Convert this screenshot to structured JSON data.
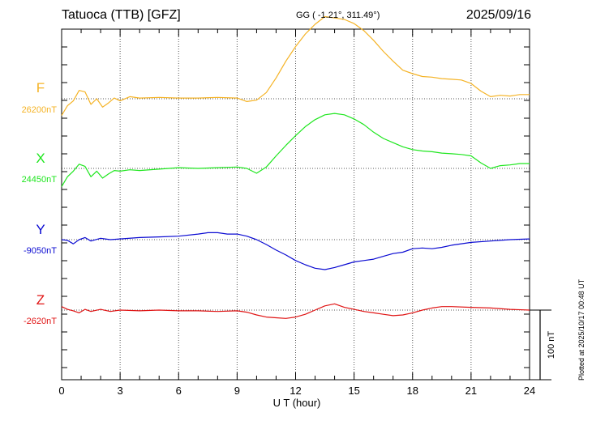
{
  "header": {
    "title": "Tatuoca (TTB)  [GFZ]",
    "coords": "GG ( -1.21°, 311.49°)",
    "date": "2025/09/16"
  },
  "footer": {
    "plotted": "Plotted at 2025/10/17 00:48 UT"
  },
  "colors": {
    "F": "#f5b325",
    "X": "#1ee61e",
    "Y": "#0a0ad2",
    "Z": "#e01414",
    "grid": "#555555",
    "axis": "#000000"
  },
  "chart_data": {
    "type": "line",
    "xlabel": "U T (hour)",
    "xlim": [
      0,
      24
    ],
    "xticks": [
      0,
      3,
      6,
      9,
      12,
      15,
      18,
      21,
      24
    ],
    "scale_bar": {
      "label": "100 nT",
      "nT": 100
    },
    "series": [
      {
        "name": "F",
        "baseline_label": "26200nT",
        "baseline_nT": 26200,
        "x": [
          0,
          0.3,
          0.6,
          0.9,
          1.2,
          1.5,
          1.8,
          2.1,
          2.4,
          2.7,
          3.0,
          3.5,
          4,
          5,
          6,
          7,
          8,
          9,
          9.5,
          10,
          10.5,
          11,
          11.5,
          12,
          12.5,
          13,
          13.5,
          14,
          14.5,
          15,
          15.5,
          16,
          16.5,
          17,
          17.5,
          18,
          18.5,
          19,
          19.5,
          20,
          20.5,
          21,
          21.5,
          22,
          22.5,
          23,
          23.5,
          24
        ],
        "values": [
          26176,
          26190,
          26197,
          26212,
          26210,
          26192,
          26200,
          26188,
          26194,
          26201,
          26197,
          26203,
          26201,
          26202,
          26201,
          26201,
          26202,
          26201,
          26196,
          26198,
          26209,
          26230,
          26254,
          26275,
          26293,
          26307,
          26318,
          26316,
          26314,
          26308,
          26298,
          26284,
          26268,
          26254,
          26241,
          26236,
          26232,
          26231,
          26229,
          26228,
          26227,
          26222,
          26211,
          26203,
          26205,
          26204,
          26206,
          26206
        ]
      },
      {
        "name": "X",
        "baseline_label": "24450nT",
        "baseline_nT": 24450,
        "x": [
          0,
          0.3,
          0.6,
          0.9,
          1.2,
          1.5,
          1.8,
          2.1,
          2.4,
          2.7,
          3.0,
          3.5,
          4,
          5,
          6,
          7,
          8,
          9,
          9.5,
          10,
          10.5,
          11,
          11.5,
          12,
          12.5,
          13,
          13.5,
          14,
          14.5,
          15,
          15.5,
          16,
          16.5,
          17,
          17.5,
          18,
          18.5,
          19,
          19.5,
          20,
          20.5,
          21,
          21.5,
          22,
          22.5,
          23,
          23.5,
          24
        ],
        "values": [
          24424,
          24438,
          24446,
          24456,
          24453,
          24438,
          24446,
          24436,
          24442,
          24447,
          24446,
          24448,
          24447,
          24449,
          24451,
          24450,
          24451,
          24452,
          24450,
          24443,
          24452,
          24468,
          24483,
          24497,
          24510,
          24520,
          24527,
          24529,
          24527,
          24521,
          24513,
          24502,
          24493,
          24487,
          24481,
          24477,
          24475,
          24474,
          24472,
          24471,
          24470,
          24468,
          24458,
          24450,
          24454,
          24455,
          24457,
          24457
        ]
      },
      {
        "name": "Y",
        "baseline_label": "-9050nT",
        "baseline_nT": -9050,
        "x": [
          0,
          0.3,
          0.6,
          0.9,
          1.2,
          1.5,
          2,
          2.5,
          3,
          4,
          5,
          6,
          7,
          7.5,
          8,
          8.5,
          9,
          9.5,
          10,
          10.5,
          11,
          11.5,
          12,
          12.5,
          13,
          13.5,
          14,
          14.5,
          15,
          15.5,
          16,
          16.5,
          17,
          17.5,
          18,
          18.5,
          19,
          19.5,
          20,
          21,
          22,
          23,
          24
        ],
        "values": [
          -9050,
          -9051,
          -9056,
          -9050,
          -9047,
          -9052,
          -9048,
          -9050,
          -9049,
          -9047,
          -9046,
          -9045,
          -9042,
          -9040,
          -9040,
          -9042,
          -9042,
          -9045,
          -9050,
          -9057,
          -9065,
          -9072,
          -9080,
          -9086,
          -9091,
          -9093,
          -9090,
          -9086,
          -9082,
          -9080,
          -9078,
          -9074,
          -9070,
          -9068,
          -9063,
          -9062,
          -9063,
          -9061,
          -9058,
          -9054,
          -9052,
          -9050,
          -9049
        ]
      },
      {
        "name": "Z",
        "baseline_label": "-2620nT",
        "baseline_nT": -2620,
        "x": [
          0,
          0.3,
          0.6,
          0.9,
          1.2,
          1.5,
          2,
          2.5,
          3,
          4,
          5,
          6,
          7,
          8,
          9,
          9.5,
          10,
          10.5,
          11,
          11.5,
          12,
          12.5,
          13,
          13.5,
          14,
          14.5,
          15,
          15.5,
          16,
          16.5,
          17,
          17.5,
          18,
          18.5,
          19,
          19.5,
          20,
          21,
          22,
          23,
          24
        ],
        "values": [
          -2615,
          -2619,
          -2621,
          -2624,
          -2619,
          -2622,
          -2619,
          -2622,
          -2620,
          -2621,
          -2620,
          -2621,
          -2621,
          -2622,
          -2621,
          -2623,
          -2627,
          -2630,
          -2631,
          -2632,
          -2630,
          -2626,
          -2620,
          -2614,
          -2611,
          -2616,
          -2619,
          -2622,
          -2624,
          -2626,
          -2628,
          -2627,
          -2624,
          -2620,
          -2617,
          -2615,
          -2615,
          -2616,
          -2617,
          -2619,
          -2620
        ]
      }
    ]
  }
}
